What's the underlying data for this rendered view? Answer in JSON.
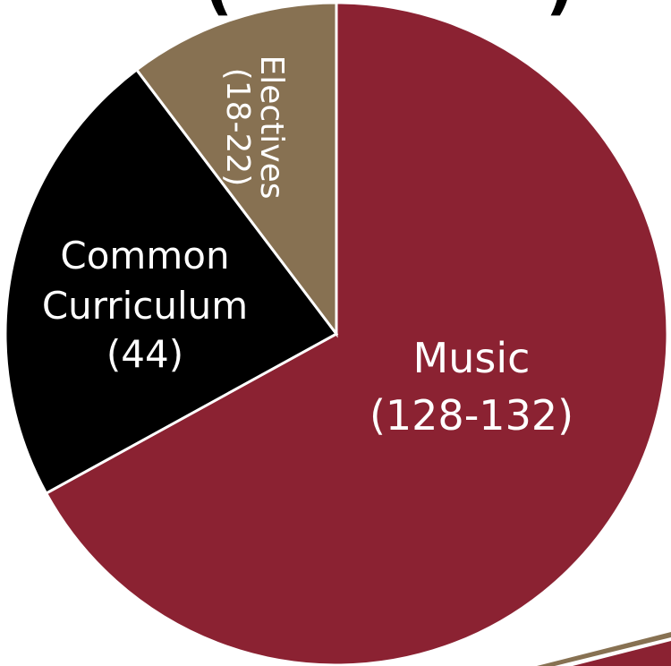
{
  "title_fragment": "(",
  "title_fragment_end": ")",
  "chart_data": {
    "type": "pie",
    "slices": [
      {
        "name": "Music",
        "range": "(128-132)",
        "value": 130,
        "color": "#8b2232",
        "text_color": "#ffffff"
      },
      {
        "name": "Common Curriculum",
        "range": "(44)",
        "value": 44,
        "color": "#000000",
        "text_color": "#ffffff"
      },
      {
        "name": "Electives",
        "range": "(18-22)",
        "value": 20,
        "color": "#877152",
        "text_color": "#ffffff"
      }
    ],
    "start_angle_deg": 0,
    "direction": "clockwise",
    "border_color": "#ffffff"
  }
}
